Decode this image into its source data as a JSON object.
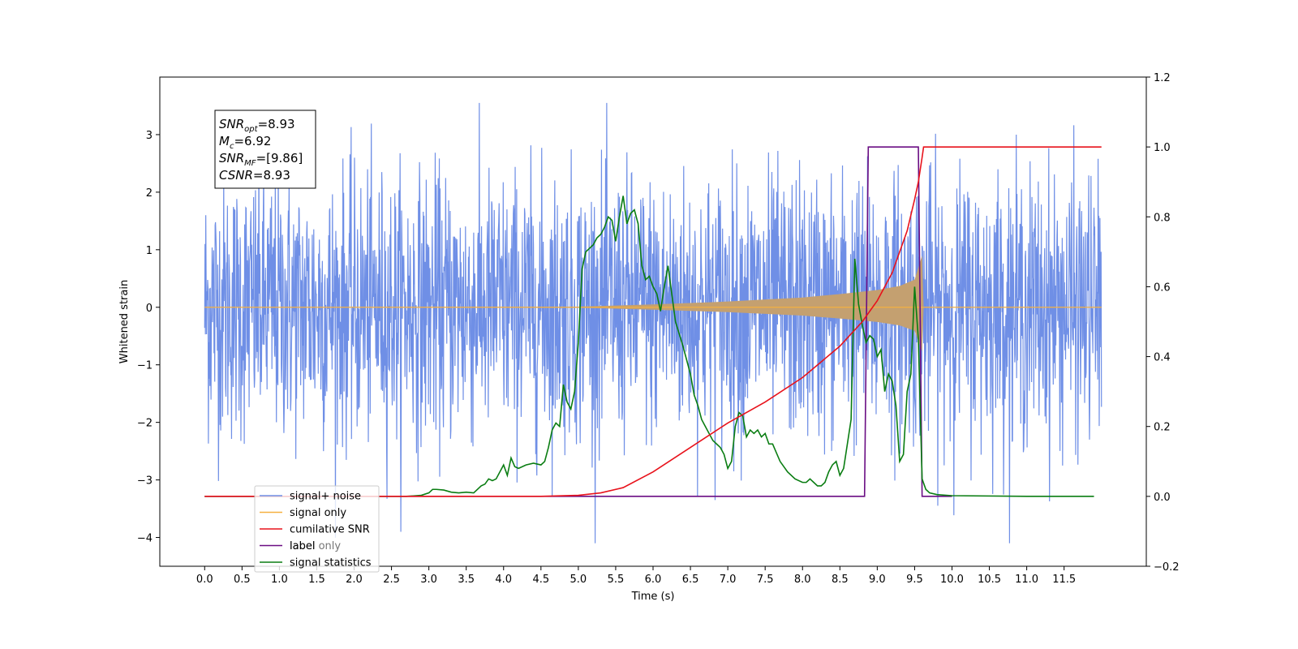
{
  "chart_data": {
    "type": "line",
    "xlabel": "Time (s)",
    "ylabel_left": "Whitened strain",
    "xlim": [
      -0.6,
      12.6
    ],
    "ylim_left": [
      -4.5,
      4.0
    ],
    "ylim_right": [
      -0.2,
      1.2
    ],
    "x_ticks": [
      "0.0",
      "0.5",
      "1.0",
      "1.5",
      "2.0",
      "2.5",
      "3.0",
      "3.5",
      "4.0",
      "4.5",
      "5.0",
      "5.5",
      "6.0",
      "6.5",
      "7.0",
      "7.5",
      "8.0",
      "8.5",
      "9.0",
      "9.5",
      "10.0",
      "10.5",
      "11.0",
      "11.5"
    ],
    "y_ticks_left": [
      "3",
      "2",
      "1",
      "0",
      "−1",
      "−2",
      "−3",
      "−4"
    ],
    "y_ticks_right": [
      "1.2",
      "1.0",
      "0.8",
      "0.6",
      "0.4",
      "0.2",
      "0.0",
      "−0.2"
    ],
    "legend_position": "lower-left",
    "colors": {
      "signal_noise": "#6f8fe6",
      "signal_only": "#f5b041",
      "signal_fill": "#c4a070",
      "cumulative_snr": "#e8121b",
      "label": "#6a0d83",
      "signal_statistics": "#0a7d12"
    },
    "series": [
      {
        "name": "signal+ noise",
        "axis": "left",
        "description_range": [
          -2.3,
          2.4
        ],
        "t_start": 0.0,
        "t_end": 12.0
      },
      {
        "name": "signal only",
        "axis": "left",
        "envelope": [
          [
            0.0,
            0.0
          ],
          [
            5.0,
            0.01
          ],
          [
            6.0,
            0.05
          ],
          [
            7.0,
            0.1
          ],
          [
            8.0,
            0.17
          ],
          [
            8.5,
            0.23
          ],
          [
            9.0,
            0.3
          ],
          [
            9.3,
            0.37
          ],
          [
            9.5,
            0.48
          ],
          [
            9.6,
            0.9
          ],
          [
            9.62,
            0.0
          ],
          [
            12.0,
            0.0
          ]
        ]
      },
      {
        "name": "cumilative SNR",
        "axis": "right",
        "x": [
          0.0,
          4.5,
          5.0,
          5.3,
          5.6,
          6.0,
          6.5,
          7.0,
          7.5,
          8.0,
          8.5,
          8.8,
          9.0,
          9.2,
          9.4,
          9.5,
          9.55,
          9.6,
          9.62,
          12.0
        ],
        "y": [
          0.0,
          0.0,
          0.003,
          0.01,
          0.025,
          0.07,
          0.14,
          0.21,
          0.27,
          0.34,
          0.43,
          0.5,
          0.56,
          0.64,
          0.76,
          0.85,
          0.9,
          0.97,
          1.0,
          1.0
        ]
      },
      {
        "name": "label",
        "axis": "right",
        "x": [
          0.0,
          8.83,
          8.88,
          9.55,
          9.6,
          10.0
        ],
        "y": [
          0.0,
          0.0,
          1.0,
          1.0,
          0.0,
          0.0
        ]
      },
      {
        "name": "signal statistics",
        "axis": "right",
        "x": [
          0.0,
          2.7,
          2.9,
          3.0,
          3.05,
          3.1,
          3.2,
          3.3,
          3.4,
          3.5,
          3.6,
          3.7,
          3.75,
          3.8,
          3.85,
          3.9,
          4.0,
          4.05,
          4.1,
          4.15,
          4.2,
          4.3,
          4.4,
          4.5,
          4.55,
          4.6,
          4.65,
          4.7,
          4.75,
          4.8,
          4.85,
          4.9,
          4.95,
          5.0,
          5.05,
          5.1,
          5.15,
          5.2,
          5.25,
          5.3,
          5.35,
          5.4,
          5.45,
          5.5,
          5.55,
          5.6,
          5.65,
          5.7,
          5.75,
          5.8,
          5.85,
          5.9,
          5.95,
          6.0,
          6.05,
          6.1,
          6.15,
          6.2,
          6.3,
          6.4,
          6.5,
          6.55,
          6.6,
          6.65,
          6.7,
          6.8,
          6.85,
          6.9,
          6.95,
          7.0,
          7.05,
          7.1,
          7.15,
          7.2,
          7.25,
          7.3,
          7.35,
          7.4,
          7.45,
          7.5,
          7.55,
          7.6,
          7.7,
          7.8,
          7.9,
          8.0,
          8.05,
          8.1,
          8.15,
          8.2,
          8.25,
          8.3,
          8.35,
          8.4,
          8.45,
          8.5,
          8.55,
          8.6,
          8.65,
          8.7,
          8.75,
          8.8,
          8.85,
          8.9,
          8.95,
          9.0,
          9.05,
          9.1,
          9.15,
          9.2,
          9.25,
          9.3,
          9.35,
          9.4,
          9.45,
          9.5,
          9.55,
          9.6,
          9.65,
          9.7,
          9.8,
          10.0,
          11.0,
          11.9
        ],
        "y": [
          0.0,
          0.0,
          0.003,
          0.01,
          0.02,
          0.02,
          0.018,
          0.012,
          0.01,
          0.012,
          0.01,
          0.03,
          0.035,
          0.05,
          0.045,
          0.05,
          0.09,
          0.06,
          0.11,
          0.085,
          0.08,
          0.09,
          0.095,
          0.09,
          0.1,
          0.14,
          0.19,
          0.21,
          0.2,
          0.32,
          0.27,
          0.25,
          0.3,
          0.44,
          0.65,
          0.7,
          0.71,
          0.72,
          0.74,
          0.75,
          0.77,
          0.8,
          0.79,
          0.73,
          0.8,
          0.86,
          0.78,
          0.81,
          0.82,
          0.78,
          0.66,
          0.62,
          0.63,
          0.6,
          0.58,
          0.53,
          0.6,
          0.66,
          0.5,
          0.43,
          0.35,
          0.29,
          0.26,
          0.22,
          0.2,
          0.16,
          0.15,
          0.14,
          0.12,
          0.08,
          0.1,
          0.2,
          0.24,
          0.23,
          0.17,
          0.19,
          0.18,
          0.19,
          0.17,
          0.18,
          0.15,
          0.15,
          0.1,
          0.07,
          0.05,
          0.04,
          0.04,
          0.05,
          0.04,
          0.03,
          0.03,
          0.04,
          0.07,
          0.09,
          0.1,
          0.06,
          0.08,
          0.15,
          0.22,
          0.68,
          0.55,
          0.49,
          0.44,
          0.46,
          0.45,
          0.4,
          0.42,
          0.3,
          0.35,
          0.33,
          0.26,
          0.1,
          0.12,
          0.3,
          0.35,
          0.6,
          0.45,
          0.05,
          0.02,
          0.01,
          0.005,
          0.002,
          0.0,
          0.0
        ]
      }
    ],
    "legend": [
      "signal+ noise",
      "signal only",
      "cumilative SNR",
      "label",
      "signal statistics"
    ],
    "legend_hidden_text": "label only",
    "annotation": {
      "lines": [
        {
          "base": "SNR",
          "sub": "opt",
          "rest": "=8.93"
        },
        {
          "base": "M",
          "sub": "c",
          "rest": "=6.92"
        },
        {
          "base": "SNR",
          "sub": "MF",
          "rest": "=[9.86]"
        },
        {
          "base": "CSNR",
          "sub": "",
          "rest": "=8.93"
        }
      ]
    }
  }
}
